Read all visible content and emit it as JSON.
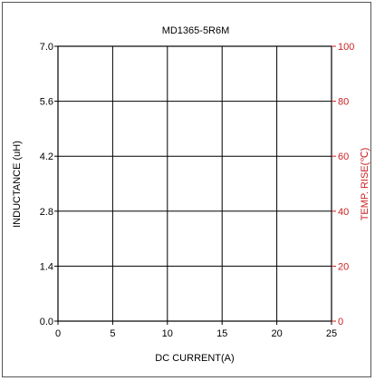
{
  "chart_data": {
    "type": "line",
    "title": "MD1365-5R6M",
    "xlabel": "DC CURRENT(A)",
    "ylabel": "INDUCTANCE (uH)",
    "y2label": "TEMP. RISE(℃)",
    "xlim": [
      0,
      25
    ],
    "ylim": [
      0,
      7.0
    ],
    "y2lim": [
      0,
      100
    ],
    "x_ticks": [
      "0",
      "5",
      "10",
      "15",
      "20",
      "25"
    ],
    "y_ticks": [
      "0.0",
      "1.4",
      "2.8",
      "4.2",
      "5.6",
      "7.0"
    ],
    "y2_ticks": [
      "0",
      "20",
      "40",
      "60",
      "80",
      "100"
    ],
    "grid": true,
    "series": [],
    "colors": {
      "primary_axis": "#000000",
      "secondary_axis": "#cc2222",
      "grid": "#000000"
    }
  }
}
